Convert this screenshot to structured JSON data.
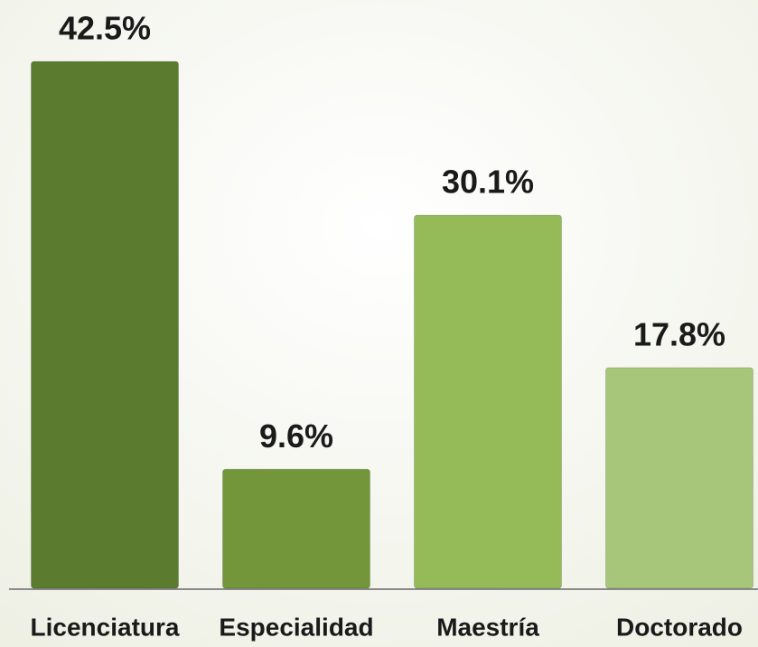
{
  "chart_data": {
    "type": "bar",
    "categories": [
      "Licenciatura",
      "Especialidad",
      "Maestría",
      "Doctorado"
    ],
    "values": [
      42.5,
      9.6,
      30.1,
      17.8
    ],
    "value_labels": [
      "42.5%",
      "9.6%",
      "30.1%",
      "17.8%"
    ],
    "colors": [
      "#5b7b2f",
      "#73963a",
      "#95bb58",
      "#a8c679"
    ]
  }
}
